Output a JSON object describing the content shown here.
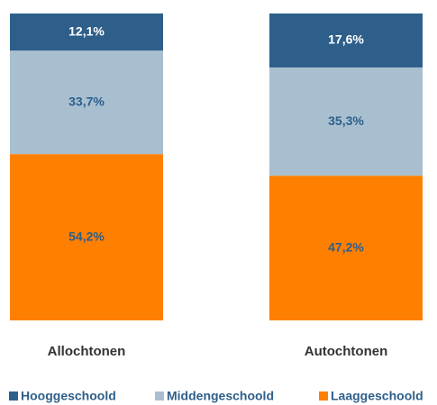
{
  "chart_data": {
    "type": "stacked-bar",
    "categories": [
      "Allochtonen",
      "Autochtonen"
    ],
    "series": [
      {
        "name": "Hooggeschoold",
        "color": "#2e5f8a",
        "values": [
          12.1,
          17.6
        ],
        "value_labels": [
          "12,1%",
          "17,6%"
        ]
      },
      {
        "name": "Middengeschoold",
        "color": "#a8bfd0",
        "values": [
          33.7,
          35.3
        ],
        "value_labels": [
          "33,7%",
          "35,3%"
        ]
      },
      {
        "name": "Laaggeschoold",
        "color": "#ff7f00",
        "values": [
          54.2,
          47.2
        ],
        "value_labels": [
          "54,2%",
          "47,2%"
        ]
      }
    ]
  }
}
